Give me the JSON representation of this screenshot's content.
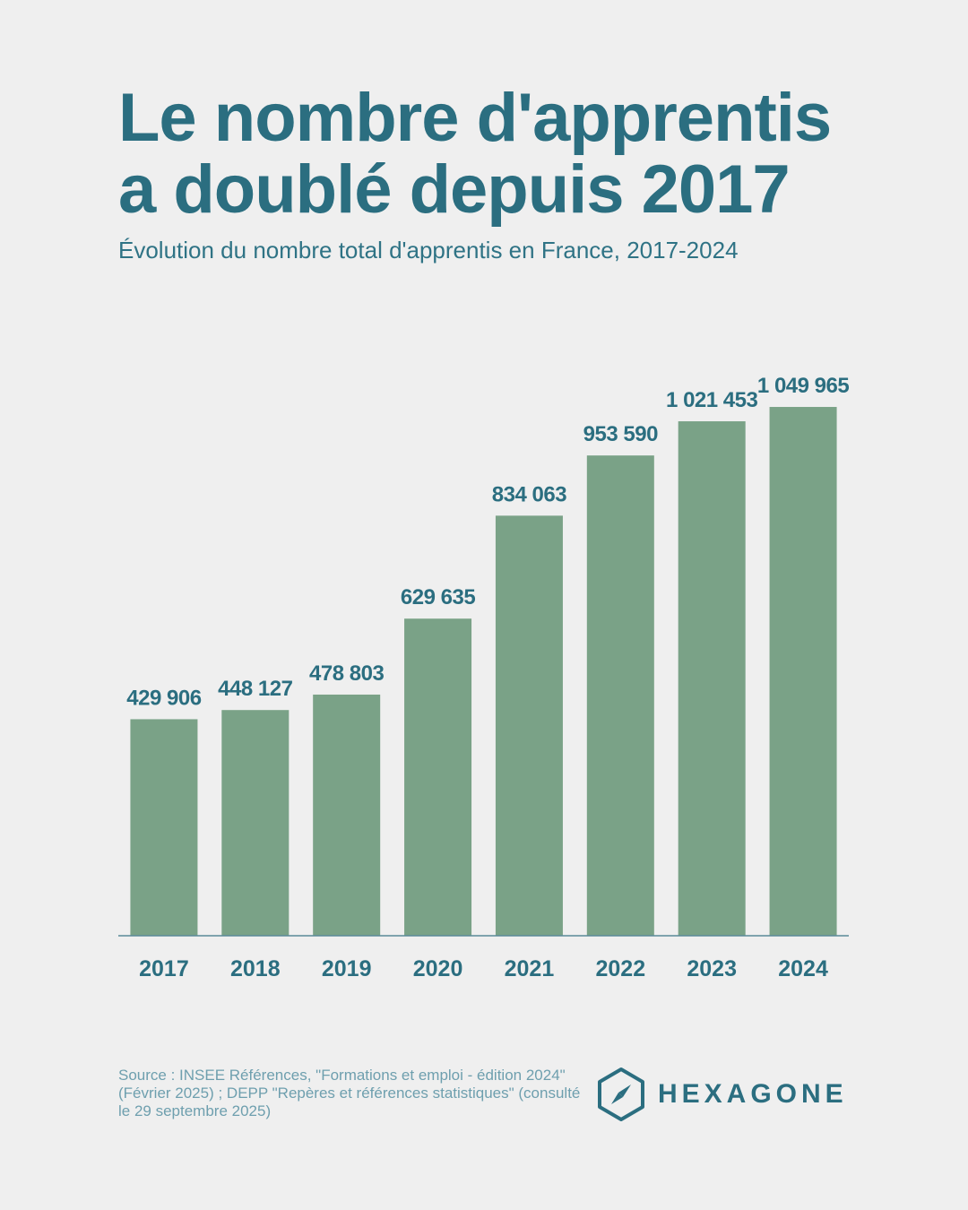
{
  "header": {
    "title_line1": "Le nombre d'apprentis",
    "title_line2": "a doublé depuis 2017",
    "subtitle": "Évolution du nombre total d'apprentis en France, 2017-2024"
  },
  "chart_data": {
    "type": "bar",
    "title": "Le nombre d'apprentis a doublé depuis 2017",
    "subtitle": "Évolution du nombre total d'apprentis en France, 2017-2024",
    "categories": [
      "2017",
      "2018",
      "2019",
      "2020",
      "2021",
      "2022",
      "2023",
      "2024"
    ],
    "values": [
      429906,
      448127,
      478803,
      629635,
      834063,
      953590,
      1021453,
      1049965
    ],
    "value_labels": [
      "429 906",
      "448 127",
      "478 803",
      "629 635",
      "834 063",
      "953 590",
      "1 021 453",
      "1 049 965"
    ],
    "ylim": [
      0,
      1050000
    ],
    "grid": false,
    "legend": "none",
    "colors": {
      "bar": "#7aa287",
      "text": "#2b6e80",
      "axis": "#5a8a99"
    }
  },
  "footer": {
    "source": "Source : INSEE Références, \"Formations et emploi - édition 2024\" (Février 2025) ; DEPP \"Repères et références statistiques\" (consulté le 29 septembre 2025)",
    "brand": "HEXAGONE",
    "logo_icon": "compass-hexagon-icon"
  }
}
